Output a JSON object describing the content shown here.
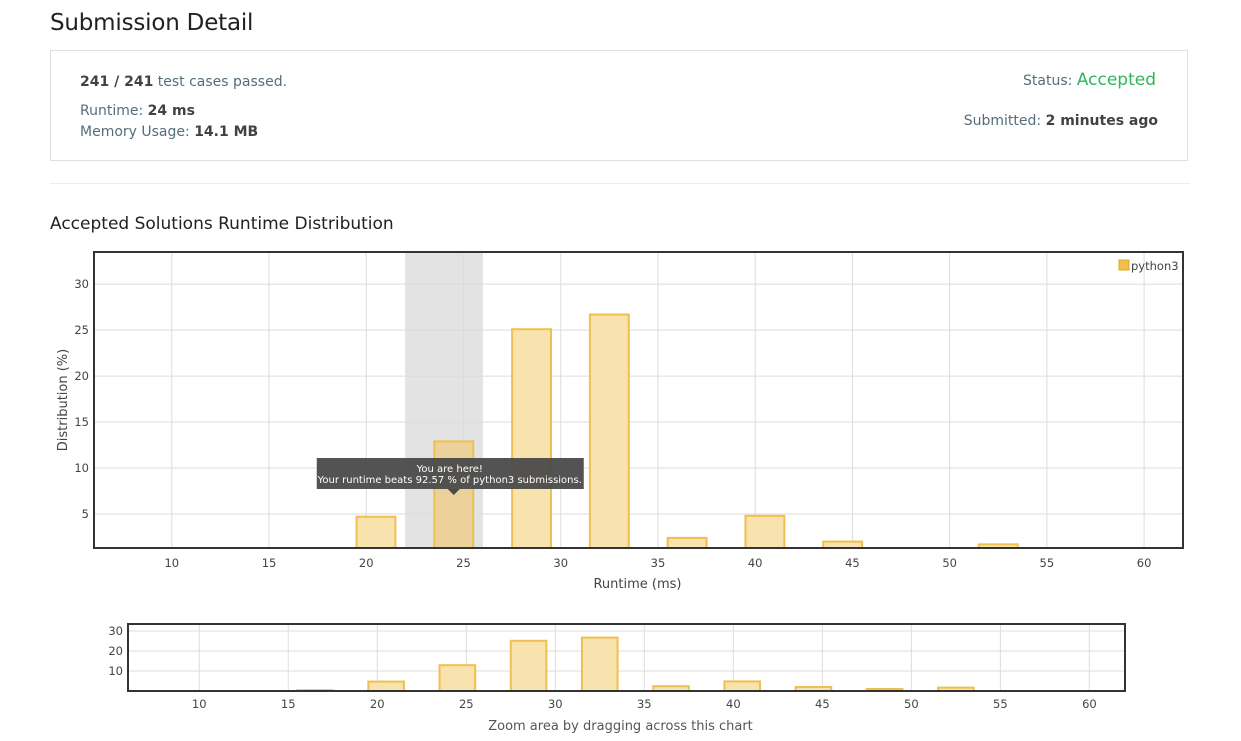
{
  "page": {
    "title": "Submission Detail",
    "section_title": "Accepted Solutions Runtime Distribution"
  },
  "summary": {
    "passed": "241 / 241",
    "passed_suffix": "test cases passed.",
    "runtime_label": "Runtime:",
    "runtime_value": "24 ms",
    "memory_label": "Memory Usage:",
    "memory_value": "14.1 MB",
    "status_label": "Status:",
    "status_value": "Accepted",
    "submitted_label": "Submitted:",
    "submitted_value": "2 minutes ago"
  },
  "colors": {
    "accepted": "#2db55d",
    "bar_fill": "#f8e2ae",
    "bar_stroke": "#f0c04f",
    "highlight_band": "#e3e3e3"
  },
  "tooltip": {
    "line1": "You are here!",
    "line2": "Your runtime beats 92.57 % of python3 submissions."
  },
  "zoom_caption": "Zoom area by dragging across this chart",
  "chart_data": {
    "type": "bar",
    "series": [
      {
        "name": "python3",
        "x": [
          16.5,
          20.5,
          24.5,
          28.5,
          32.5,
          36.5,
          40.5,
          44.5,
          48.5,
          52.5
        ],
        "values": [
          0.4,
          4.7,
          12.9,
          25.1,
          26.7,
          2.4,
          4.8,
          2.0,
          1.0,
          1.7
        ]
      }
    ],
    "highlight": {
      "x_range": [
        22,
        26
      ],
      "bar_x": 24.5
    },
    "xlabel": "Runtime (ms)",
    "ylabel": "Distribution (%)",
    "xlim": [
      6,
      62
    ],
    "ylim": [
      1.3,
      33.5
    ],
    "x_ticks": [
      10,
      15,
      20,
      25,
      30,
      35,
      40,
      45,
      50,
      55,
      60
    ],
    "y_ticks": [
      5,
      10,
      15,
      20,
      25,
      30
    ],
    "legend": "top-right",
    "grid": true,
    "overview": {
      "ylim": [
        0,
        33.5
      ],
      "y_ticks": [
        10,
        20,
        30
      ],
      "x_ticks": [
        10,
        15,
        20,
        25,
        30,
        35,
        40,
        45,
        50,
        55,
        60
      ]
    }
  }
}
